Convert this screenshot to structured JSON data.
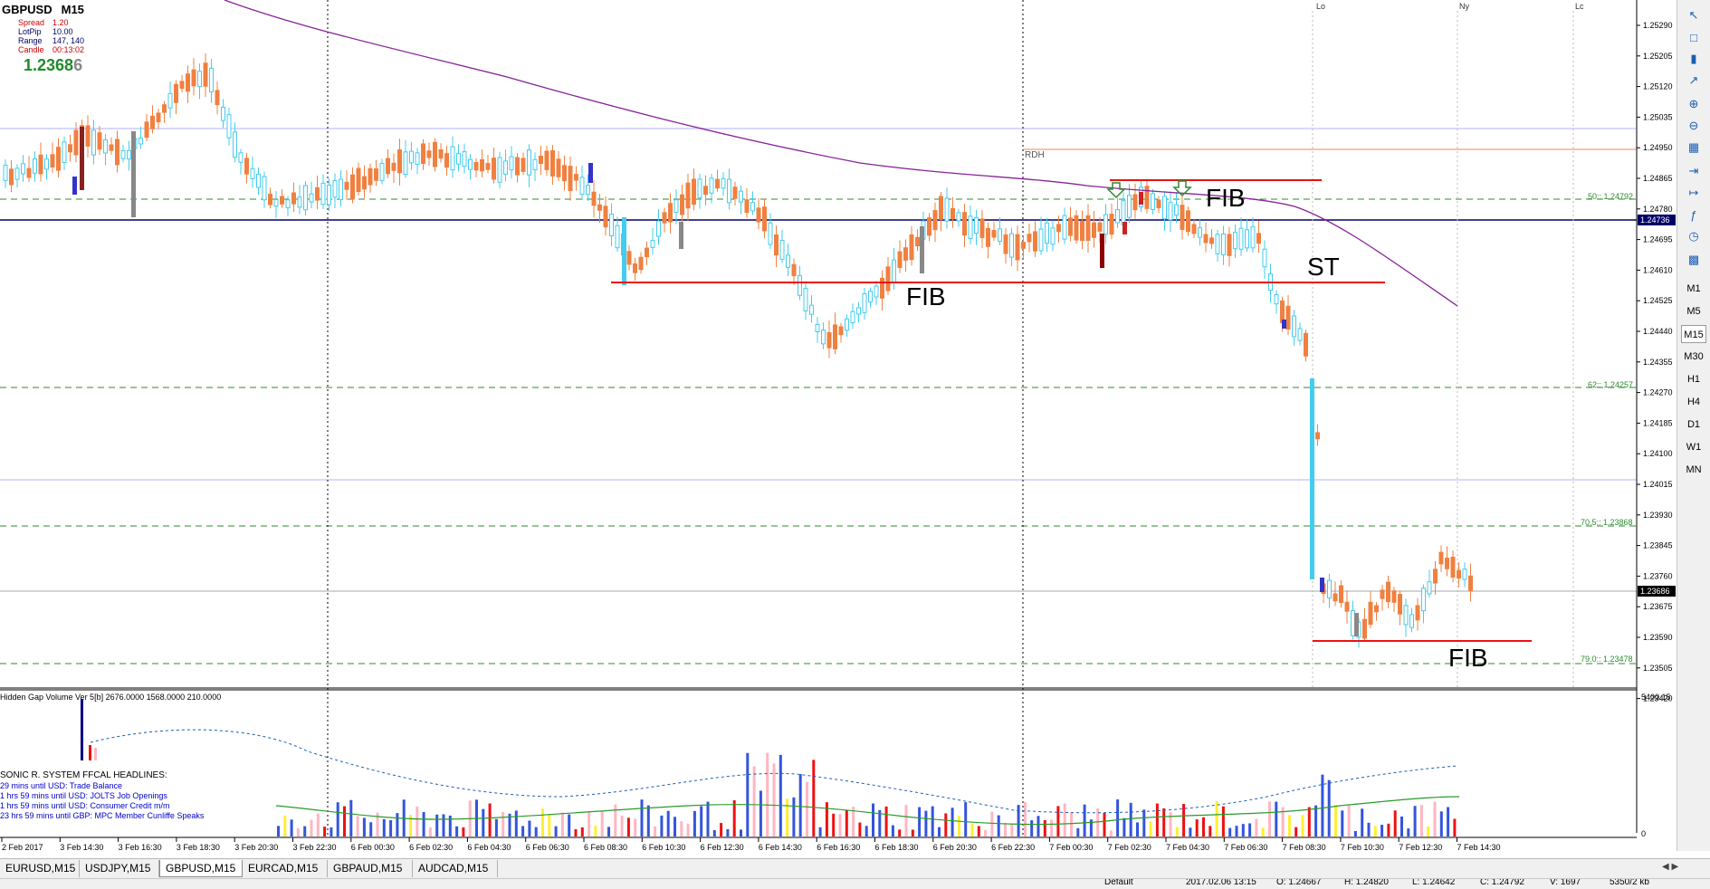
{
  "window": {
    "symbol": "GBPUSD",
    "timeframe": "M15",
    "info_lines": [
      {
        "label": "Spread",
        "value": "1.20"
      },
      {
        "label": "LotPip",
        "value": "10.00"
      },
      {
        "label": "Range",
        "value": "147, 140"
      },
      {
        "label": "Candle",
        "value": "00:13:02"
      }
    ],
    "big_price_main": "1.2368",
    "big_price_last": "6"
  },
  "price_axis": {
    "labels": [
      "1.25290",
      "1.25205",
      "1.25120",
      "1.25035",
      "1.24950",
      "1.24865",
      "1.24780",
      "1.24695",
      "1.24610",
      "1.24525",
      "1.24440",
      "1.24355",
      "1.24270",
      "1.24185",
      "1.24100",
      "1.24015",
      "1.23930",
      "1.23845",
      "1.23760",
      "1.23675",
      "1.23590",
      "1.23505",
      "1.23420"
    ],
    "current_price": "1.23686",
    "line_price": "1.24736"
  },
  "session_labels": [
    "Lo",
    "Ny",
    "Lc"
  ],
  "fib_labels": [
    "50:: 1.24792",
    "62:: 1.24257",
    "70.5:: 1.23868",
    "79.0:: 1.23478"
  ],
  "annotations": {
    "rdh": "RDH",
    "fib_1": "FIB",
    "fib_2": "FIB",
    "fib_3": "FIB",
    "st": "ST"
  },
  "indicator": {
    "title": "Hidden Gap Volume Ver 5[b] 2676.0000 1568.0000 210.0000",
    "axis_max": "5400.15",
    "axis_min": "0",
    "headlines_title": "SONIC R. SYSTEM  FFCAL HEADLINES:",
    "headlines": [
      "29 mins until USD: Trade Balance",
      "1 hrs 59 mins until USD: JOLTS Job Openings",
      "1 hrs 59 mins until USD: Consumer Credit m/m",
      "23 hrs 59 mins until GBP: MPC Member Cunliffe Speaks"
    ]
  },
  "time_axis": [
    "2 Feb 2017",
    "3 Feb 14:30",
    "3 Feb 16:30",
    "3 Feb 18:30",
    "3 Feb 20:30",
    "3 Feb 22:30",
    "6 Feb 00:30",
    "6 Feb 02:30",
    "6 Feb 04:30",
    "6 Feb 06:30",
    "6 Feb 08:30",
    "6 Feb 10:30",
    "6 Feb 12:30",
    "6 Feb 14:30",
    "6 Feb 16:30",
    "6 Feb 18:30",
    "6 Feb 20:30",
    "6 Feb 22:30",
    "7 Feb 00:30",
    "7 Feb 02:30",
    "7 Feb 04:30",
    "7 Feb 06:30",
    "7 Feb 08:30",
    "7 Feb 10:30",
    "7 Feb 12:30",
    "7 Feb 14:30"
  ],
  "timeframes": [
    "M1",
    "M5",
    "M15",
    "M30",
    "H1",
    "H4",
    "D1",
    "W1",
    "MN"
  ],
  "active_timeframe": "M15",
  "toolbar_icons": [
    "cursor-icon",
    "bar-chart-icon",
    "candle-chart-icon",
    "line-chart-icon",
    "zoom-in-icon",
    "zoom-out-icon",
    "tile-windows-icon",
    "scroll-icon",
    "autoscroll-icon",
    "indicators-icon",
    "periods-icon",
    "templates-icon"
  ],
  "tabs": [
    "EURUSD,M15",
    "USDJPY,M15",
    "GBPUSD,M15",
    "EURCAD,M15",
    "GBPAUD,M15",
    "AUDCAD,M15"
  ],
  "active_tab": "GBPUSD,M15",
  "status": [
    "Default",
    "2017.02.06 13:15",
    "O: 1.24667",
    "H: 1.24820",
    "L: 1.24642",
    "C: 1.24792",
    "V: 1697",
    "5350/2 kb"
  ],
  "colors": {
    "bull": "#44ccee",
    "bear": "#f08040",
    "fib_line": "#2e8b2e",
    "red_line": "#ee1111",
    "navy_line": "#000066",
    "ma_line": "#882299",
    "vol_blue": "#3355dd",
    "vol_red": "#ee1111",
    "vol_pink": "#ffb6c1",
    "vol_yellow": "#ffee33"
  }
}
